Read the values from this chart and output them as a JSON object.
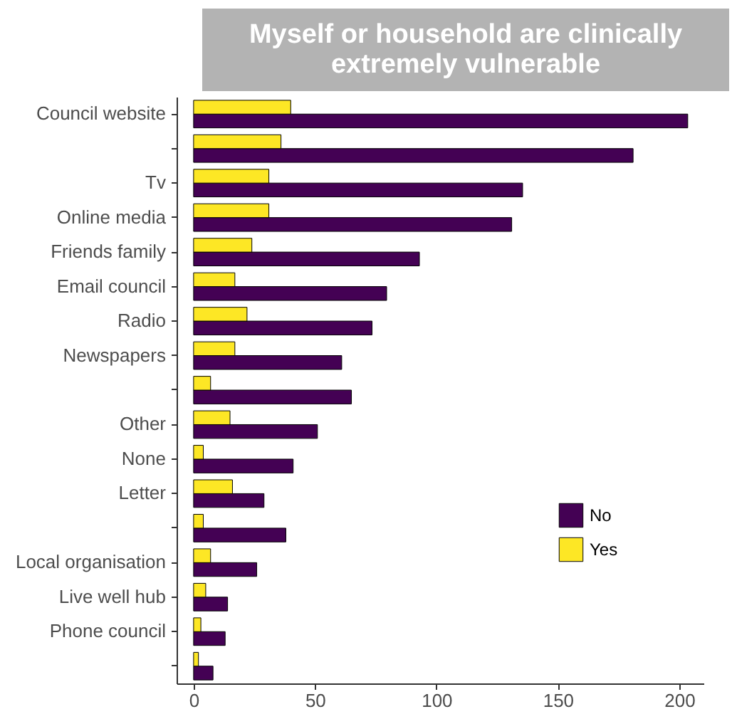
{
  "chart_data": {
    "type": "bar",
    "orientation": "horizontal",
    "title": "Myself or household are clinically extremely vulnerable",
    "categories": [
      "Council website",
      null,
      "Tv",
      "Online media",
      "Friends family",
      "Email council",
      "Radio",
      "Newspapers",
      null,
      "Other",
      "None",
      "Letter",
      null,
      "Local organisation",
      "Live well hub",
      "Phone council",
      null
    ],
    "series": [
      {
        "name": "No",
        "color": "#440154",
        "values": [
          203.5,
          181,
          135.5,
          131,
          93,
          79.5,
          73.5,
          61,
          65,
          51,
          41,
          29,
          38,
          26,
          14,
          13,
          8
        ]
      },
      {
        "name": "Yes",
        "color": "#fde725",
        "values": [
          40,
          36,
          31,
          31,
          24,
          17,
          22,
          17,
          7,
          15,
          4,
          16,
          4,
          7,
          5,
          3,
          2
        ]
      }
    ],
    "xlim": [
      -7,
      210
    ],
    "xticks": [
      0,
      50,
      100,
      150,
      200
    ],
    "grid": false,
    "legend": "right"
  }
}
